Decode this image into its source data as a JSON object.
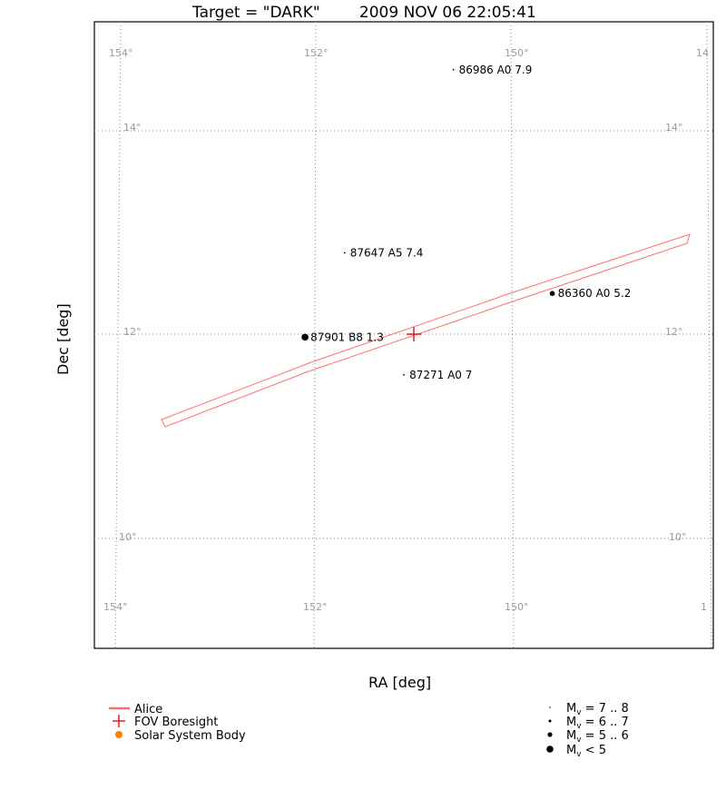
{
  "chart_data": {
    "type": "scatter",
    "title": "Target = \"DARK\"        2009 NOV 06 22:05:41",
    "xlabel": "RA [deg]",
    "ylabel": "Dec [deg]",
    "grid": true,
    "ra_grid_ticks": [
      {
        "label": "154°"
      },
      {
        "label": "152°"
      },
      {
        "label": "150°"
      },
      {
        "label": "14"
      }
    ],
    "ra_grid_ticks_bottom": [
      {
        "label": "154°"
      },
      {
        "label": "152°"
      },
      {
        "label": "150°"
      },
      {
        "label": "1"
      }
    ],
    "dec_grid_ticks_left": [
      {
        "label": "14°"
      },
      {
        "label": "12°"
      },
      {
        "label": "10°"
      }
    ],
    "dec_grid_ticks_right": [
      {
        "label": "14°"
      },
      {
        "label": "12°"
      },
      {
        "label": "10°"
      }
    ],
    "stars": [
      {
        "id": "86986",
        "spectral_type": "A0",
        "magnitude": "7.9",
        "label": "86986 A0 7.9",
        "ra": 150.6,
        "dec": 14.6,
        "mag_class": "7-8"
      },
      {
        "id": "87647",
        "spectral_type": "A5",
        "magnitude": "7.4",
        "label": "87647 A5 7.4",
        "ra": 151.7,
        "dec": 12.8,
        "mag_class": "7-8"
      },
      {
        "id": "86360",
        "spectral_type": "A0",
        "magnitude": "5.2",
        "label": "86360 A0 5.2",
        "ra": 149.6,
        "dec": 12.4,
        "mag_class": "5-6"
      },
      {
        "id": "87901",
        "spectral_type": "B8",
        "magnitude": "1.3",
        "label": "87901 B8 1.3",
        "ra": 152.1,
        "dec": 11.97,
        "mag_class": "<5"
      },
      {
        "id": "87271",
        "spectral_type": "A0",
        "magnitude": "7",
        "label": "87271 A0 7",
        "ra": 151.1,
        "dec": 11.6,
        "mag_class": "7-8"
      }
    ],
    "fov_boresight": {
      "ra": 151.0,
      "dec": 12.0
    },
    "series": [
      {
        "name": "Alice",
        "color": "#ff7070"
      },
      {
        "name": "FOV Boresight",
        "color": "#e41a1a"
      },
      {
        "name": "Solar System Body",
        "color": "#ff7f00"
      }
    ],
    "magnitude_legend": [
      {
        "prefix": "M",
        "sub": "v",
        "suffix": " = 7 .. 8",
        "size_class": "7-8"
      },
      {
        "prefix": "M",
        "sub": "v",
        "suffix": " = 6 .. 7",
        "size_class": "6-7"
      },
      {
        "prefix": "M",
        "sub": "v",
        "suffix": " = 5 .. 6",
        "size_class": "5-6"
      },
      {
        "prefix": "M",
        "sub": "v",
        "suffix": " < 5",
        "size_class": "<5"
      }
    ],
    "legend_placement": "bottom"
  },
  "colors": {
    "alice": "#ff7070",
    "boresight": "#e41a1a",
    "solar_system_body": "#ff7f00",
    "grid": "#888888",
    "tick_text": "#9a9a9a"
  }
}
